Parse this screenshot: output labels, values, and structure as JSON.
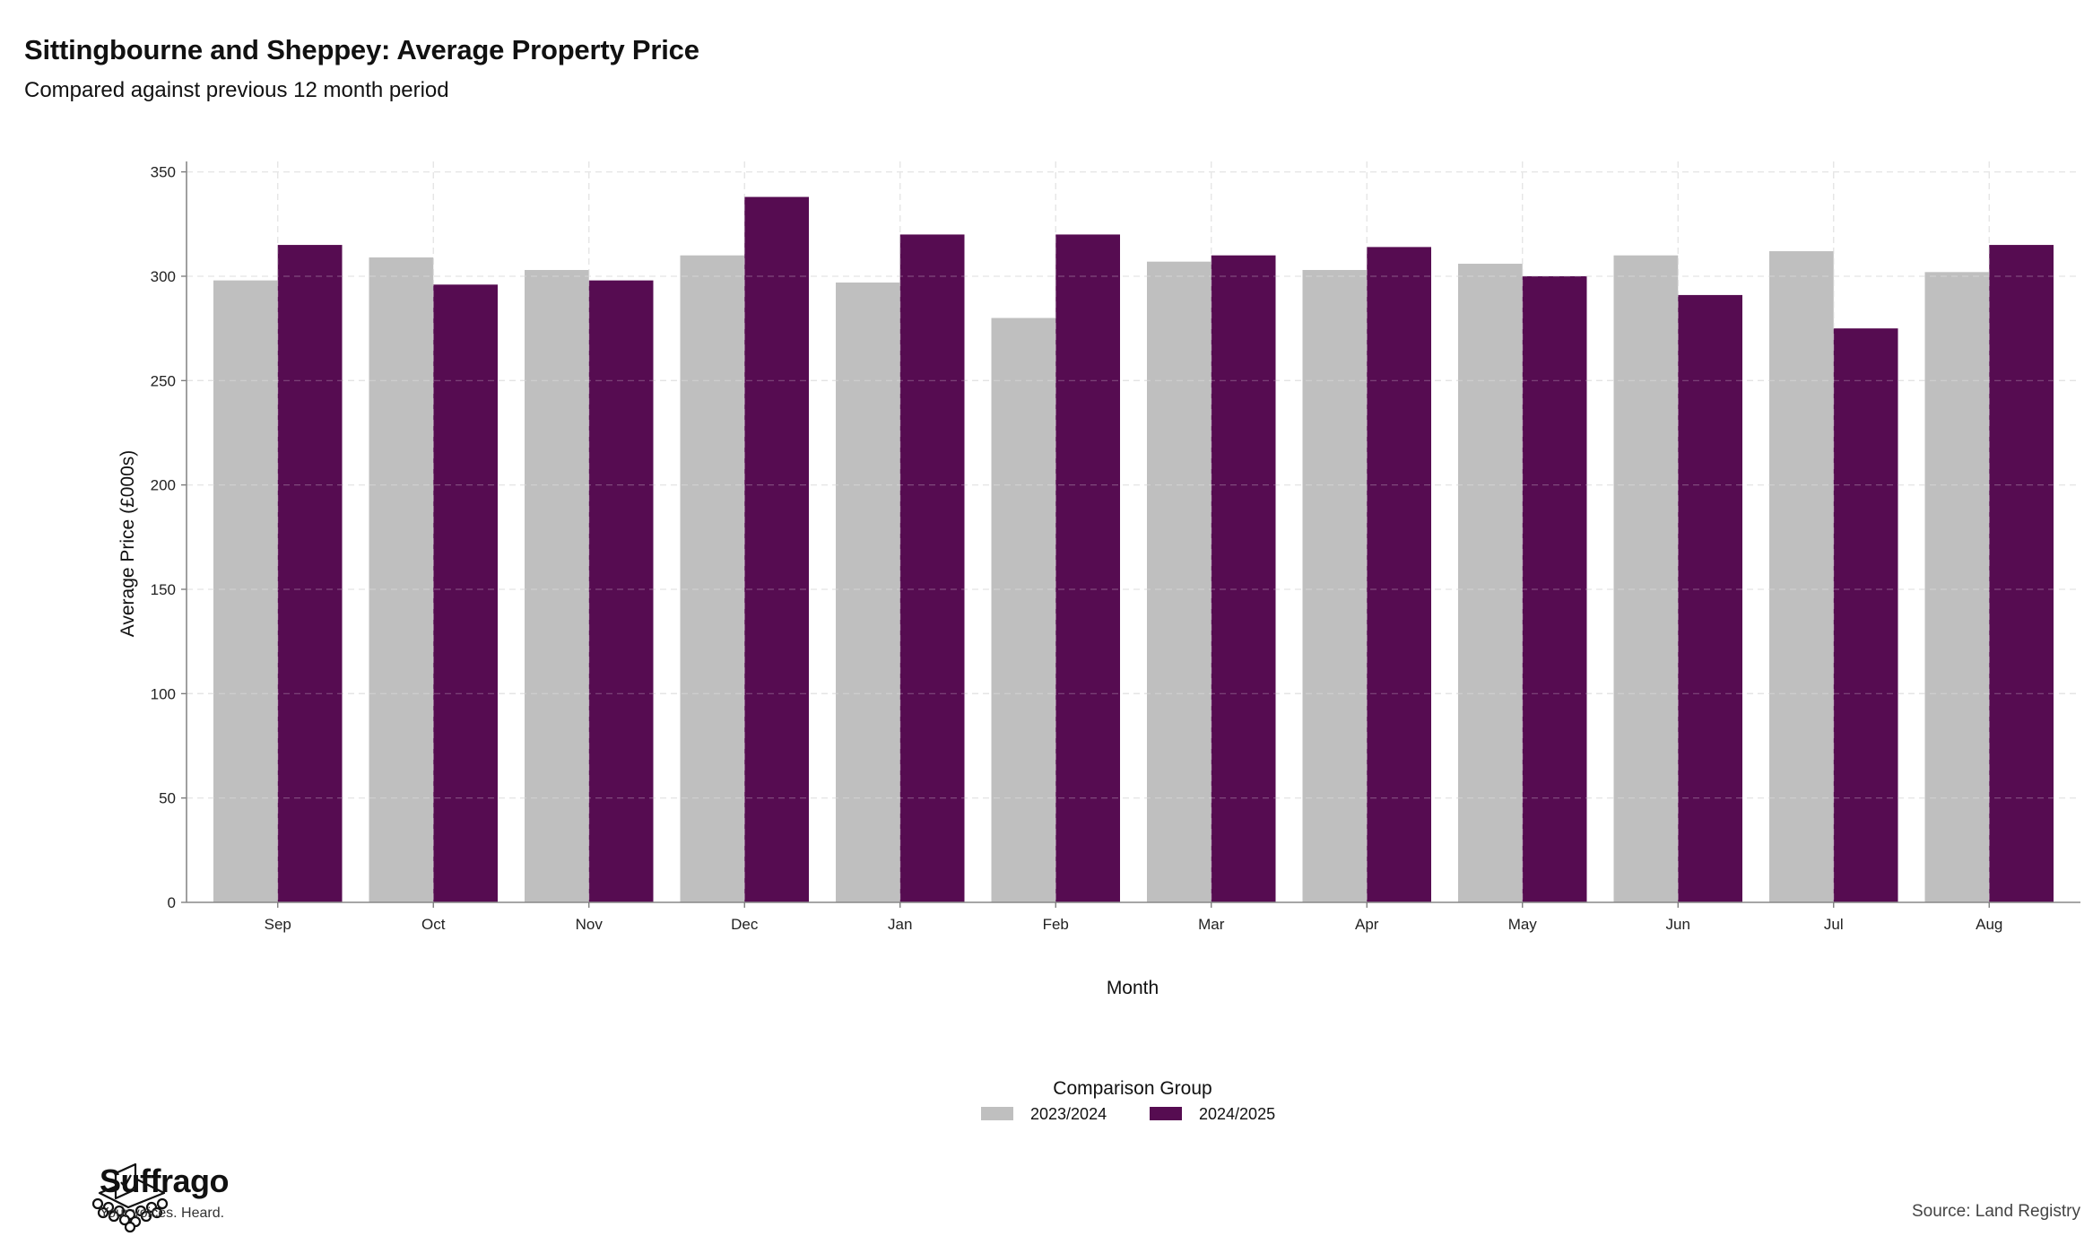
{
  "chart_data": {
    "type": "bar",
    "title": "Sittingbourne and Sheppey: Average Property Price",
    "subtitle": "Compared against previous 12 month period",
    "xlabel": "Month",
    "ylabel": "Average Price (£000s)",
    "ylim": [
      0,
      355
    ],
    "yticks": [
      0,
      50,
      100,
      150,
      200,
      250,
      300,
      350
    ],
    "grid": true,
    "categories": [
      "Sep",
      "Oct",
      "Nov",
      "Dec",
      "Jan",
      "Feb",
      "Mar",
      "Apr",
      "May",
      "Jun",
      "Jul",
      "Aug"
    ],
    "series": [
      {
        "name": "2023/2024",
        "color": "#bfbfbf",
        "values": [
          298,
          309,
          303,
          310,
          297,
          280,
          307,
          303,
          306,
          310,
          312,
          302
        ]
      },
      {
        "name": "2024/2025",
        "color": "#560c51",
        "values": [
          315,
          296,
          298,
          338,
          320,
          320,
          310,
          314,
          300,
          291,
          275,
          315
        ]
      }
    ],
    "legend": {
      "title": "Comparison Group",
      "position": "bottom"
    }
  },
  "branding": {
    "name": "Suffrago",
    "tagline": "Your voices. Heard.",
    "logo_icon": "ballot-box-icon"
  },
  "source": "Source: Land Registry"
}
